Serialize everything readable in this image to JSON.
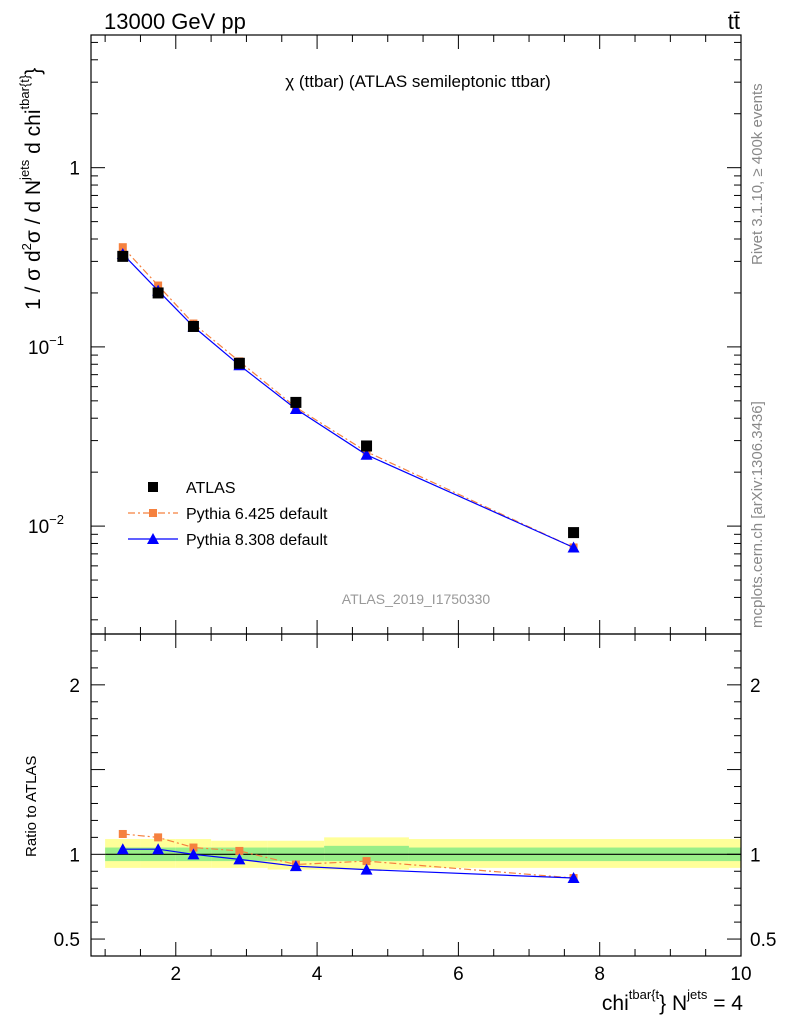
{
  "header": {
    "energy_label": "13000 GeV pp",
    "process_label": "tt̄"
  },
  "side_labels": {
    "rivet": "Rivet 3.1.10, ≥ 400k events",
    "mcplots": "mcplots.cern.ch [arXiv:1306.3436]"
  },
  "chart_data": [
    {
      "type": "line",
      "panel": "main",
      "title": "χ (ttbar) (ATLAS semileptonic ttbar)",
      "ylabel_parts": [
        "1 / σ d",
        "2",
        "σ / d N",
        "jets",
        " d chi",
        "tbar{t}",
        "}"
      ],
      "yscale": "log",
      "ylim": [
        0.0025,
        5.5
      ],
      "xlim": [
        0.8,
        10
      ],
      "y_ticks": [
        {
          "value": 1,
          "label": "1"
        },
        {
          "value": 0.1,
          "label": "10",
          "exp": "−1"
        },
        {
          "value": 0.01,
          "label": "10",
          "exp": "−2"
        }
      ],
      "watermark": "ATLAS_2019_I1750330",
      "legend": {
        "position": "bottom-left",
        "entries": [
          "ATLAS",
          "Pythia 6.425 default",
          "Pythia 8.308 default"
        ]
      },
      "x": [
        1.25,
        1.75,
        2.25,
        2.9,
        3.7,
        4.7,
        7.63
      ],
      "series": [
        {
          "name": "ATLAS",
          "marker": "square",
          "color": "#000000",
          "values": [
            0.32,
            0.2,
            0.13,
            0.081,
            0.049,
            0.028,
            0.0092
          ]
        },
        {
          "name": "Pythia 6.425 default",
          "marker": "square-small",
          "color": "#f5813f",
          "dash": "dashdot",
          "values": [
            0.36,
            0.22,
            0.135,
            0.083,
            0.046,
            0.026,
            0.0076
          ]
        },
        {
          "name": "Pythia 8.308 default",
          "marker": "triangle",
          "color": "#0000ff",
          "values": [
            0.33,
            0.206,
            0.13,
            0.079,
            0.045,
            0.025,
            0.0076
          ]
        }
      ]
    },
    {
      "type": "line",
      "panel": "ratio",
      "ylabel": "Ratio to ATLAS",
      "ylim": [
        0.4,
        2.3
      ],
      "xlim": [
        0.8,
        10
      ],
      "xlabel_parts": [
        "chi",
        "tbar{t",
        "} N",
        "jets",
        " = 4"
      ],
      "y_ticks": [
        {
          "value": 0.5,
          "label": "0.5"
        },
        {
          "value": 1,
          "label": "1"
        },
        {
          "value": 2,
          "label": "2"
        }
      ],
      "x_ticks": [
        {
          "value": 2,
          "label": "2"
        },
        {
          "value": 4,
          "label": "4"
        },
        {
          "value": 6,
          "label": "6"
        },
        {
          "value": 8,
          "label": "8"
        },
        {
          "value": 10,
          "label": "10"
        }
      ],
      "bands": {
        "bins": [
          [
            1.0,
            1.5
          ],
          [
            1.5,
            2.0
          ],
          [
            2.0,
            2.5
          ],
          [
            2.5,
            3.3
          ],
          [
            3.3,
            4.1
          ],
          [
            4.1,
            5.3
          ],
          [
            5.3,
            10.0
          ]
        ],
        "yellow": [
          [
            0.92,
            1.09
          ],
          [
            0.92,
            1.09
          ],
          [
            0.92,
            1.09
          ],
          [
            0.92,
            1.08
          ],
          [
            0.91,
            1.08
          ],
          [
            0.91,
            1.1
          ],
          [
            0.92,
            1.09
          ]
        ],
        "green": [
          [
            0.96,
            1.04
          ],
          [
            0.96,
            1.04
          ],
          [
            0.96,
            1.04
          ],
          [
            0.96,
            1.04
          ],
          [
            0.96,
            1.04
          ],
          [
            0.96,
            1.05
          ],
          [
            0.96,
            1.04
          ]
        ]
      },
      "x": [
        1.25,
        1.75,
        2.25,
        2.9,
        3.7,
        4.7,
        7.63
      ],
      "series": [
        {
          "name": "Pythia 6.425 default",
          "marker": "square-small",
          "color": "#f5813f",
          "dash": "dashdot",
          "values": [
            1.12,
            1.1,
            1.04,
            1.02,
            0.94,
            0.96,
            0.86
          ]
        },
        {
          "name": "Pythia 8.308 default",
          "marker": "triangle",
          "color": "#0000ff",
          "values": [
            1.03,
            1.03,
            1.0,
            0.97,
            0.93,
            0.91,
            0.86
          ]
        }
      ]
    }
  ]
}
